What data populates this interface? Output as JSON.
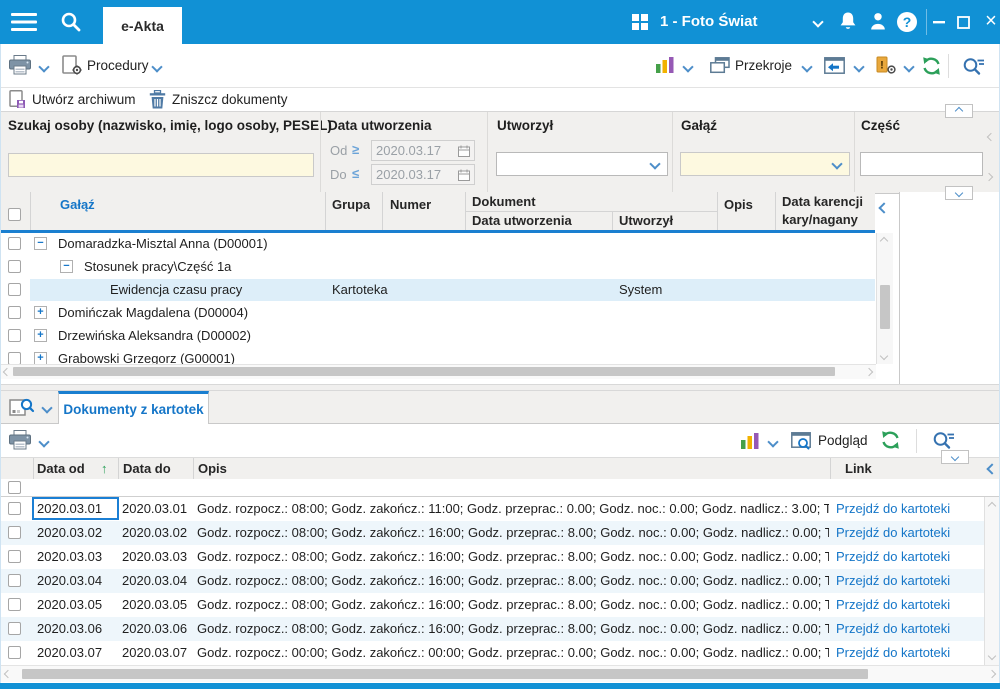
{
  "colors": {
    "accent": "#1191d5",
    "link": "#1576c8",
    "selected_row": "#ddeef9",
    "alt_row": "#eef6fb",
    "input_yellow": "#fdf9e0"
  },
  "icons": {
    "collapse": "−",
    "expand": "+",
    "sort_asc": "↑",
    "close": "×",
    "ge": "≥",
    "le": "≤"
  },
  "titlebar": {
    "tab_label": "e-Akta",
    "company": "1 - Foto Świat"
  },
  "toolbar": {
    "procedury": "Procedury",
    "przekroje": "Przekroje",
    "utworz_archiwum": "Utwórz archiwum",
    "zniszcz_dokumenty": "Zniszcz dokumenty"
  },
  "filters": {
    "szukaj_label": "Szukaj osoby (nazwisko, imię, logo osoby, PESEL)",
    "szukaj_value": "",
    "data_utworzenia_label": "Data utworzenia",
    "od_label": "Od",
    "od_value": "2020.03.17",
    "do_label": "Do",
    "do_value": "2020.03.17",
    "utworzyl_label": "Utworzył",
    "utworzyl_value": "",
    "galaz_label": "Gałąź",
    "galaz_value": "",
    "czesc_label": "Część",
    "czesc_value": ""
  },
  "grid_osoby": {
    "col_galaz": "Gałąź",
    "col_grupa": "Grupa",
    "col_numer": "Numer",
    "col_dokument": "Dokument",
    "col_data_utworzenia": "Data utworzenia",
    "col_utworzyl": "Utworzył",
    "col_opis": "Opis",
    "col_data_karencji": "Data karencji",
    "col_kary_nagany": "kary/nagany",
    "rows": [
      {
        "level": 1,
        "expander": "minus",
        "label": "Domaradzka-Misztal Anna (D00001)",
        "grupa": "",
        "utworzyl": "",
        "selected": false
      },
      {
        "level": 2,
        "expander": "minus",
        "label": "Stosunek pracy\\Część 1a",
        "grupa": "",
        "utworzyl": "",
        "selected": false
      },
      {
        "level": 3,
        "expander": "none",
        "label": "Ewidencja czasu pracy",
        "grupa": "Kartoteka",
        "utworzyl": "System",
        "selected": true
      },
      {
        "level": 1,
        "expander": "plus",
        "label": "Domińczak Magdalena (D00004)",
        "grupa": "",
        "utworzyl": "",
        "selected": false
      },
      {
        "level": 1,
        "expander": "plus",
        "label": "Drzewińska Aleksandra (D00002)",
        "grupa": "",
        "utworzyl": "",
        "selected": false
      },
      {
        "level": 1,
        "expander": "plus",
        "label": "Grabowski Grzegorz (G00001)",
        "grupa": "",
        "utworzyl": "",
        "selected": false
      }
    ]
  },
  "panel_dokumenty": {
    "tab_label": "Dokumenty z kartotek",
    "podglad": "Podgląd",
    "grid": {
      "col_data_od": "Data od",
      "col_data_do": "Data do",
      "col_opis": "Opis",
      "col_link": "Link",
      "rows": [
        {
          "od": "2020.03.01",
          "do": "2020.03.01",
          "opis": "Godz. rozpocz.: 08:00; Godz. zakończ.: 11:00; Godz. przeprac.: 0.00; Godz. noc.: 0.00; Godz. nadlicz.: 3.00; T",
          "link": "Przejdź do kartoteki"
        },
        {
          "od": "2020.03.02",
          "do": "2020.03.02",
          "opis": "Godz. rozpocz.: 08:00; Godz. zakończ.: 16:00; Godz. przeprac.: 8.00; Godz. noc.: 0.00; Godz. nadlicz.: 0.00; T",
          "link": "Przejdź do kartoteki"
        },
        {
          "od": "2020.03.03",
          "do": "2020.03.03",
          "opis": "Godz. rozpocz.: 08:00; Godz. zakończ.: 16:00; Godz. przeprac.: 8.00; Godz. noc.: 0.00; Godz. nadlicz.: 0.00; T",
          "link": "Przejdź do kartoteki"
        },
        {
          "od": "2020.03.04",
          "do": "2020.03.04",
          "opis": "Godz. rozpocz.: 08:00; Godz. zakończ.: 16:00; Godz. przeprac.: 8.00; Godz. noc.: 0.00; Godz. nadlicz.: 0.00; T",
          "link": "Przejdź do kartoteki"
        },
        {
          "od": "2020.03.05",
          "do": "2020.03.05",
          "opis": "Godz. rozpocz.: 08:00; Godz. zakończ.: 16:00; Godz. przeprac.: 8.00; Godz. noc.: 0.00; Godz. nadlicz.: 0.00; T",
          "link": "Przejdź do kartoteki"
        },
        {
          "od": "2020.03.06",
          "do": "2020.03.06",
          "opis": "Godz. rozpocz.: 08:00; Godz. zakończ.: 16:00; Godz. przeprac.: 8.00; Godz. noc.: 0.00; Godz. nadlicz.: 0.00; T",
          "link": "Przejdź do kartoteki"
        },
        {
          "od": "2020.03.07",
          "do": "2020.03.07",
          "opis": "Godz. rozpocz.: 00:00; Godz. zakończ.: 00:00; Godz. przeprac.: 0.00; Godz. noc.: 0.00; Godz. nadlicz.: 0.00; T",
          "link": "Przejdź do kartoteki"
        }
      ]
    }
  }
}
